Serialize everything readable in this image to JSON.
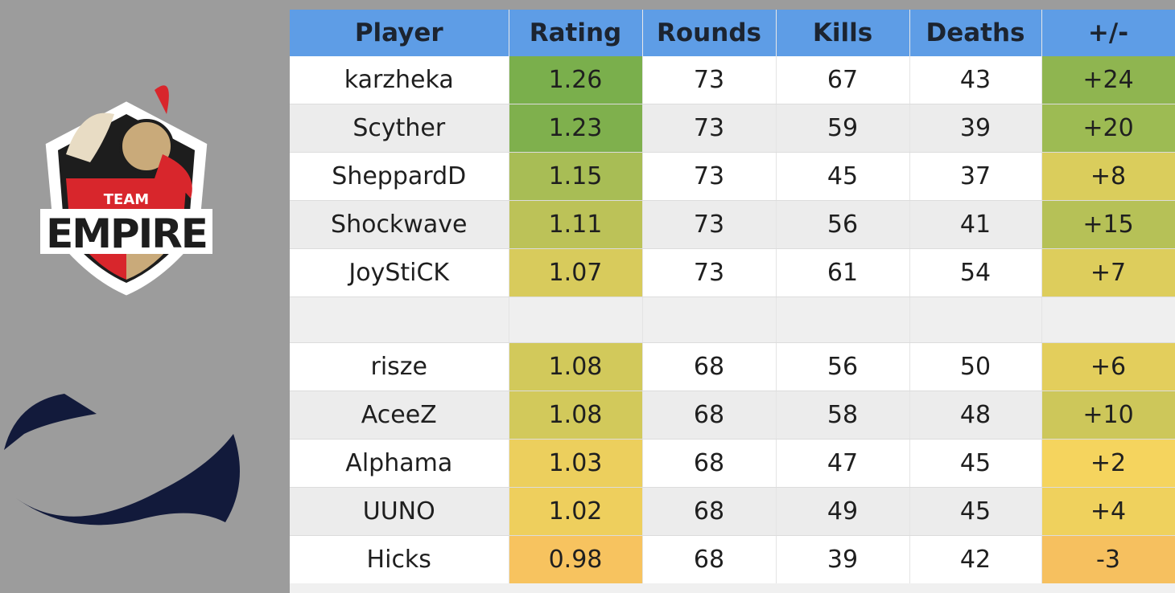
{
  "colors": {
    "header_bg": "#5e9de6",
    "page_bg": "#9c9c9c",
    "green_strong": "#7aaf4c",
    "green_mid": "#97b952",
    "yellow_green": "#b9c257",
    "yellow": "#dbcd5c",
    "yellow_light": "#e8cf5a",
    "orange": "#f2c25c"
  },
  "logos": {
    "team_logo_top_text": "TEAM",
    "team_logo_main_text": "EMPIRE"
  },
  "table": {
    "headers": [
      "Player",
      "Rating",
      "Rounds",
      "Kills",
      "Deaths",
      "+/-"
    ],
    "team1": [
      {
        "player": "karzheka",
        "rating": "1.26",
        "rounds": "73",
        "kills": "67",
        "deaths": "43",
        "diff": "+24",
        "rating_color": "#7aaf4c",
        "diff_color": "#8fb550"
      },
      {
        "player": "Scyther",
        "rating": "1.23",
        "rounds": "73",
        "kills": "59",
        "deaths": "39",
        "diff": "+20",
        "rating_color": "#7fb04d",
        "diff_color": "#9dbb53"
      },
      {
        "player": "SheppardD",
        "rating": "1.15",
        "rounds": "73",
        "kills": "45",
        "deaths": "37",
        "diff": "+8",
        "rating_color": "#a8bd55",
        "diff_color": "#dacd5c"
      },
      {
        "player": "Shockwave",
        "rating": "1.11",
        "rounds": "73",
        "kills": "56",
        "deaths": "41",
        "diff": "+15",
        "rating_color": "#bcc258",
        "diff_color": "#b6c157"
      },
      {
        "player": "JoyStiCK",
        "rating": "1.07",
        "rounds": "73",
        "kills": "61",
        "deaths": "54",
        "diff": "+7",
        "rating_color": "#d8cb5c",
        "diff_color": "#ddcd5c"
      }
    ],
    "team2": [
      {
        "player": "risze",
        "rating": "1.08",
        "rounds": "68",
        "kills": "56",
        "deaths": "50",
        "diff": "+6",
        "rating_color": "#d2c95b",
        "diff_color": "#e3ce5c"
      },
      {
        "player": "AceeZ",
        "rating": "1.08",
        "rounds": "68",
        "kills": "58",
        "deaths": "48",
        "diff": "+10",
        "rating_color": "#d2c95b",
        "diff_color": "#cdc75a"
      },
      {
        "player": "Alphama",
        "rating": "1.03",
        "rounds": "68",
        "kills": "47",
        "deaths": "45",
        "diff": "+2",
        "rating_color": "#eccf5d",
        "diff_color": "#f5d45e"
      },
      {
        "player": "UUNO",
        "rating": "1.02",
        "rounds": "68",
        "kills": "49",
        "deaths": "45",
        "diff": "+4",
        "rating_color": "#eecf5d",
        "diff_color": "#efd15d"
      },
      {
        "player": "Hicks",
        "rating": "0.98",
        "rounds": "68",
        "kills": "39",
        "deaths": "42",
        "diff": "-3",
        "rating_color": "#f7c35f",
        "diff_color": "#f6c05f"
      }
    ]
  }
}
